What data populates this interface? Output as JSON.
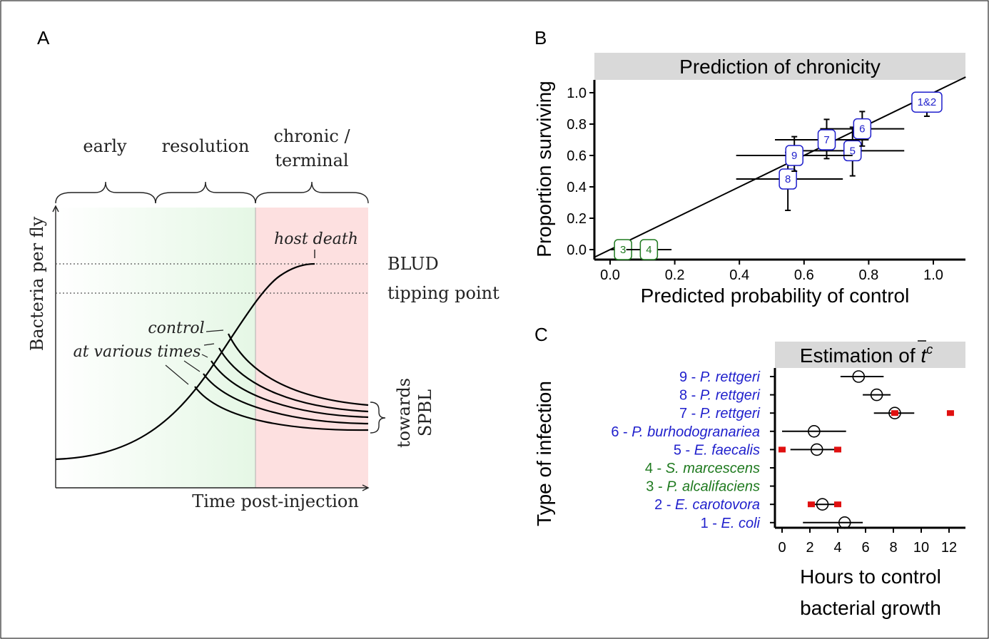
{
  "colors": {
    "blue": "#1f1fcc",
    "green": "#1f7a1f",
    "red": "#e01010",
    "strip": "#d9d9d9",
    "early_fill": "#e5f7e5",
    "late_fill": "#fde0e0"
  },
  "panel_a": {
    "letter": "A",
    "phases": [
      "early",
      "resolution",
      "chronic /",
      "terminal"
    ],
    "y_label": "Bacteria per fly",
    "x_label": "Time post-injection",
    "host_death": "host death",
    "blud": "BLUD",
    "tipping_point": "tipping point",
    "control_1": "control",
    "control_2": "at various times",
    "towards_1": "towards",
    "towards_2": "SPBL"
  },
  "chart_data": [
    {
      "panel": "B",
      "type": "scatter",
      "title": "Prediction of chronicity",
      "xlabel": "Predicted probability of control",
      "ylabel": "Proportion surviving",
      "xlim": [
        -0.05,
        1.1
      ],
      "ylim": [
        -0.05,
        1.1
      ],
      "x_ticks": [
        "0.0",
        "0.2",
        "0.4",
        "0.6",
        "0.8",
        "1.0"
      ],
      "y_ticks": [
        "0.0",
        "0.2",
        "0.4",
        "0.6",
        "0.8",
        "1.0"
      ],
      "reference_line": "y = x",
      "points": [
        {
          "label": "1&2",
          "x": 0.98,
          "y": 0.94,
          "y_lo": 0.85,
          "y_hi": 1.0,
          "x_lo": 0.97,
          "x_hi": 0.99,
          "color": "blue"
        },
        {
          "label": "3",
          "x": 0.04,
          "y": 0.0,
          "x_lo": 0.0,
          "x_hi": 0.09,
          "color": "green"
        },
        {
          "label": "4",
          "x": 0.12,
          "y": 0.0,
          "x_lo": 0.05,
          "x_hi": 0.19,
          "color": "green"
        },
        {
          "label": "5",
          "x": 0.75,
          "y": 0.63,
          "x_lo": 0.59,
          "x_hi": 0.91,
          "y_lo": 0.47,
          "y_hi": 0.78,
          "color": "blue"
        },
        {
          "label": "6",
          "x": 0.78,
          "y": 0.77,
          "x_lo": 0.65,
          "x_hi": 0.91,
          "y_lo": 0.66,
          "y_hi": 0.88,
          "color": "blue"
        },
        {
          "label": "7",
          "x": 0.67,
          "y": 0.7,
          "x_lo": 0.51,
          "x_hi": 0.8,
          "y_lo": 0.58,
          "y_hi": 0.83,
          "color": "blue"
        },
        {
          "label": "8",
          "x": 0.55,
          "y": 0.45,
          "x_lo": 0.39,
          "x_hi": 0.72,
          "y_lo": 0.25,
          "y_hi": 0.62,
          "color": "blue"
        },
        {
          "label": "9",
          "x": 0.57,
          "y": 0.6,
          "x_lo": 0.39,
          "x_hi": 0.75,
          "y_lo": 0.5,
          "y_hi": 0.72,
          "color": "blue"
        }
      ]
    },
    {
      "panel": "C",
      "type": "scatter",
      "title_main": "Estimation of ",
      "title_symbol": "t",
      "title_sup": "c",
      "xlabel_1": "Hours to control",
      "xlabel_2": "bacterial growth",
      "ylabel": "Type of infection",
      "xlim": [
        -0.5,
        13.5
      ],
      "x_ticks": [
        "0",
        "2",
        "4",
        "6",
        "8",
        "10",
        "12"
      ],
      "categories": [
        {
          "num": "9 - ",
          "name": "P. rettgeri",
          "color": "blue",
          "est": 5.5,
          "lo": 4.2,
          "hi": 7.3,
          "red": []
        },
        {
          "num": "8 - ",
          "name": "P. rettgeri",
          "color": "blue",
          "est": 6.8,
          "lo": 5.8,
          "hi": 7.8,
          "red": []
        },
        {
          "num": "7 - ",
          "name": "P. rettgeri",
          "color": "blue",
          "est": 8.1,
          "lo": 6.6,
          "hi": 9.5,
          "red": [
            8.1,
            12.1
          ]
        },
        {
          "num": "6 - ",
          "name": "P. burhodogranariea",
          "color": "blue",
          "est": 2.3,
          "lo": 0.0,
          "hi": 4.6,
          "red": []
        },
        {
          "num": "5 - ",
          "name": "E. faecalis",
          "color": "blue",
          "est": 2.5,
          "lo": 0.6,
          "hi": 4.1,
          "red": [
            0.0,
            4.0
          ]
        },
        {
          "num": "4 - ",
          "name": "S. marcescens",
          "color": "green",
          "est": null,
          "lo": null,
          "hi": null,
          "red": []
        },
        {
          "num": "3 - ",
          "name": "P. alcalifaciens",
          "color": "green",
          "est": null,
          "lo": null,
          "hi": null,
          "red": []
        },
        {
          "num": "2 - ",
          "name": "E. carotovora",
          "color": "blue",
          "est": 2.9,
          "lo": 2.0,
          "hi": 4.0,
          "red": [
            2.1,
            4.0
          ]
        },
        {
          "num": "1 - ",
          "name": "E. coli",
          "color": "blue",
          "est": 4.5,
          "lo": 1.5,
          "hi": 5.8,
          "red": []
        }
      ]
    }
  ]
}
